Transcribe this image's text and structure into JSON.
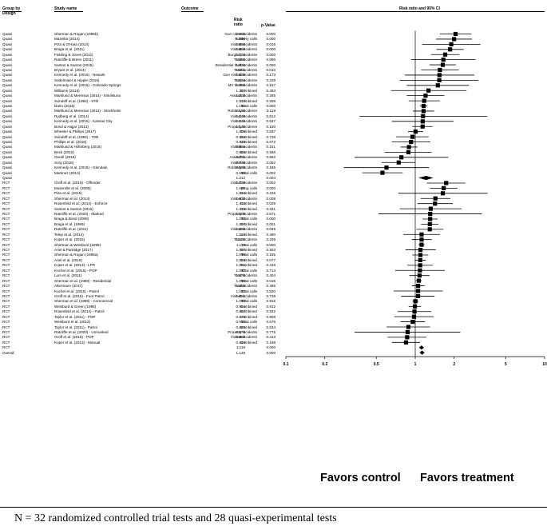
{
  "headers": {
    "group": "Group by",
    "design": "Design",
    "study": "Study name",
    "outcome": "Outcome",
    "risk_ratio": "Risk ratio",
    "pvalue": "p-Value",
    "plot_title": "Risk ratio and 95% CI"
  },
  "favors": {
    "left": "Favors control",
    "right": "Favors treatment"
  },
  "footnote": "N = 32 randomized controlled trial tests and 28 quasi-experimental tests",
  "colors": {
    "marks": "#000000",
    "background": "#ffffff"
  },
  "chart_data": {
    "type": "forest",
    "title": "Risk ratio and 95% CI",
    "xscale": "log",
    "xlim": [
      0.1,
      10
    ],
    "xticks": [
      0.1,
      0.2,
      0.5,
      1,
      2,
      5,
      10
    ],
    "xtick_labels": [
      "0.1",
      "0.2",
      "0.5",
      "1",
      "2",
      "5",
      "10"
    ],
    "reference_line": 1,
    "grid": false,
    "rows": [
      {
        "group": "Quasi",
        "study": "Sherman & Rogan (1995b)",
        "outcome": "Gun crime incidents",
        "rr": "2.050",
        "p": "0.000",
        "ci": [
          1.55,
          2.72
        ]
      },
      {
        "group": "Quasi",
        "study": "Mazeika (2014)",
        "outcome": "Robbery calls",
        "rr": "1.996",
        "p": "0.000",
        "ci": [
          1.45,
          2.75
        ]
      },
      {
        "group": "Quasi",
        "study": "Piza & O'Hara (2014)",
        "outcome": "Violent incidents",
        "rr": "1.898",
        "p": "0.016",
        "ci": [
          1.13,
          3.19
        ]
      },
      {
        "group": "Quasi",
        "study": "Braga et al. (2011)",
        "outcome": "Violent incidents",
        "rr": "1.859",
        "p": "0.000",
        "ci": [
          1.46,
          2.37
        ]
      },
      {
        "group": "Quasi",
        "study": "Fielding & Jones (2012)",
        "outcome": "Burglary incidents",
        "rr": "1.704",
        "p": "0.000",
        "ci": [
          1.32,
          2.2
        ]
      },
      {
        "group": "Quasi",
        "study": "Ratcliffe & Breen (2011)",
        "outcome": "Total incidents",
        "rr": "1.650",
        "p": "0.086",
        "ci": [
          0.93,
          2.93
        ]
      },
      {
        "group": "Quasi",
        "study": "Santos & Santos (2015)",
        "outcome": "Residential theft incidents",
        "rr": "1.632",
        "p": "0.000",
        "ci": [
          1.29,
          2.06
        ]
      },
      {
        "group": "Quasi",
        "study": "Bryant et al. (2014)",
        "outcome": "Total incidents",
        "rr": "1.551",
        "p": "0.010",
        "ci": [
          1.11,
          2.17
        ]
      },
      {
        "group": "Quasi",
        "study": "Kennedy et al. (2015) - Newark",
        "outcome": "Gun violent incidents",
        "rr": "1.539",
        "p": "0.173",
        "ci": [
          0.83,
          2.86
        ]
      },
      {
        "group": "Quasi",
        "study": "Sedelmaier & Hipple (2016)",
        "outcome": "Total incidents",
        "rr": "1.534",
        "p": "0.229",
        "ci": [
          0.76,
          3.08
        ]
      },
      {
        "group": "Quasi",
        "study": "Kennedy et al. (2015) - Colorado Springs",
        "outcome": "MV theft incidents",
        "rr": "1.496",
        "p": "0.157",
        "ci": [
          0.86,
          2.6
        ]
      },
      {
        "group": "Quasi",
        "study": "Williams (2015)",
        "outcome": "Combined",
        "rr": "1.267",
        "p": "0.493",
        "ci": [
          0.65,
          2.49
        ]
      },
      {
        "group": "Quasi",
        "study": "Marklund & Merenius (2014) - Eskilstuna",
        "outcome": "Assault incidents",
        "rr": "1.202",
        "p": "0.285",
        "ci": [
          0.86,
          1.68
        ]
      },
      {
        "group": "Quasi",
        "study": "Svindoff et al. (1992) - 67th",
        "outcome": "Combined",
        "rr": "1.172",
        "p": "0.258",
        "ci": [
          0.89,
          1.55
        ]
      },
      {
        "group": "Quasi",
        "study": "Dario (2016)",
        "outcome": "Total calls",
        "rr": "1.161",
        "p": "0.000",
        "ci": [
          1.09,
          1.24
        ]
      },
      {
        "group": "Quasi",
        "study": "Marklund & Merenius (2014) - Stockholm",
        "outcome": "Robbery incidents",
        "rr": "1.160",
        "p": "0.119",
        "ci": [
          0.96,
          1.4
        ]
      },
      {
        "group": "Quasi",
        "study": "Rydberg et al. (2014)",
        "outcome": "Violent incidents",
        "rr": "1.149",
        "p": "0.812",
        "ci": [
          0.37,
          3.6
        ]
      },
      {
        "group": "Quasi",
        "study": "Kennedy et al. (2015) - Kansas City",
        "outcome": "Violent incidents",
        "rr": "1.142",
        "p": "0.637",
        "ci": [
          0.66,
          1.98
        ]
      },
      {
        "group": "Quasi",
        "study": "Bond & Hajjar (2013)",
        "outcome": "Property incidents",
        "rr": "1.140",
        "p": "0.150",
        "ci": [
          0.95,
          1.36
        ]
      },
      {
        "group": "Quasi",
        "study": "Wheeler & Phillips (2017)",
        "outcome": "Combined",
        "rr": "1.005",
        "p": "0.937",
        "ci": [
          0.88,
          1.15
        ]
      },
      {
        "group": "Quasi",
        "study": "Svindoff et al. (1992) - 70th",
        "outcome": "Combined",
        "rr": "0.952",
        "p": "0.738",
        "ci": [
          0.71,
          1.27
        ]
      },
      {
        "group": "Quasi",
        "study": "Phillips et al. (2016)",
        "outcome": "Combined",
        "rr": "0.928",
        "p": "0.672",
        "ci": [
          0.66,
          1.31
        ]
      },
      {
        "group": "Quasi",
        "study": "Marklund & Holmberg (2015)",
        "outcome": "Violent incidents",
        "rr": "0.894",
        "p": "0.151",
        "ci": [
          0.77,
          1.04
        ]
      },
      {
        "group": "Quasi",
        "study": "Beck (2010)",
        "outcome": "Combined",
        "rr": "0.885",
        "p": "0.566",
        "ci": [
          0.58,
          1.34
        ]
      },
      {
        "group": "Quasi",
        "study": "Gerell (2016)",
        "outcome": "Assault incidents",
        "rr": "0.781",
        "p": "0.562",
        "ci": [
          0.34,
          1.8
        ]
      },
      {
        "group": "Quasi",
        "study": "Sorg (2015)",
        "outcome": "Violent incidents",
        "rr": "0.745",
        "p": "0.052",
        "ci": [
          0.55,
          1.0
        ]
      },
      {
        "group": "Quasi",
        "study": "Kennedy et al. (2015) - Glendale",
        "outcome": "Robbery incidents",
        "rr": "0.599",
        "p": "0.185",
        "ci": [
          0.28,
          1.28
        ]
      },
      {
        "group": "Quasi",
        "study": "Martinez (2013)",
        "outcome": "Total calls",
        "rr": "0.558",
        "p": "0.002",
        "ci": [
          0.39,
          0.8
        ]
      },
      {
        "group": "Quasi",
        "study": "",
        "outcome": "",
        "rr": "1.212",
        "p": "0.004",
        "ci": [
          1.06,
          1.38
        ],
        "summary": true
      },
      {
        "group": "RCT",
        "study": "Groff et al. (2015) - Offender",
        "outcome": "Violent incidents",
        "rr": "1.733",
        "p": "0.002",
        "ci": [
          1.23,
          2.44
        ]
      },
      {
        "group": "RCT",
        "study": "Mazerolle et al. (2000)",
        "outcome": "Drug calls",
        "rr": "1.660",
        "p": "0.000",
        "ci": [
          1.3,
          2.12
        ]
      },
      {
        "group": "RCT",
        "study": "Piza et al. (2015)",
        "outcome": "Combined",
        "rr": "1.634",
        "p": "0.226",
        "ci": [
          0.74,
          3.62
        ]
      },
      {
        "group": "RCT",
        "study": "Sherman et al. (2014)",
        "outcome": "Violent incidents",
        "rr": "1.432",
        "p": "0.008",
        "ci": [
          1.1,
          1.87
        ]
      },
      {
        "group": "RCT",
        "study": "Rosenfeld et al. (2014) - Enforce",
        "outcome": "Combined",
        "rr": "1.422",
        "p": "0.029",
        "ci": [
          1.04,
          1.95
        ]
      },
      {
        "group": "RCT",
        "study": "Santos & Santos (2016)",
        "outcome": "Combined",
        "rr": "1.318",
        "p": "0.321",
        "ci": [
          0.76,
          2.28
        ]
      },
      {
        "group": "RCT",
        "study": "Ratcliffe et al. (2020) - Marked",
        "outcome": "Property incidents",
        "rr": "1.305",
        "p": "0.571",
        "ci": [
          0.52,
          3.27
        ]
      },
      {
        "group": "RCT",
        "study": "Braga & Bond (2008)",
        "outcome": "Total calls",
        "rr": "1.303",
        "p": "0.000",
        "ci": [
          1.14,
          1.49
        ]
      },
      {
        "group": "RCT",
        "study": "Braga et al. (1999)",
        "outcome": "Combined",
        "rr": "1.297",
        "p": "0.001",
        "ci": [
          1.11,
          1.51
        ]
      },
      {
        "group": "RCT",
        "study": "Ratcliffe et al. (2011)",
        "outcome": "Violent incidents",
        "rr": "1.296",
        "p": "0.035",
        "ci": [
          1.02,
          1.65
        ]
      },
      {
        "group": "RCT",
        "study": "Telep et al. (2014)",
        "outcome": "Combined",
        "rr": "1.120",
        "p": "0.490",
        "ci": [
          0.81,
          1.55
        ]
      },
      {
        "group": "RCT",
        "study": "Koper et al. (2015)",
        "outcome": "Total incidents",
        "rr": "1.120",
        "p": "0.209",
        "ci": [
          0.94,
          1.34
        ]
      },
      {
        "group": "RCT",
        "study": "Sherman & Weisburd (1995)",
        "outcome": "Total calls",
        "rr": "1.119",
        "p": "0.000",
        "ci": [
          1.06,
          1.18
        ]
      },
      {
        "group": "RCT",
        "study": "Ariel & Partridge (2017)",
        "outcome": "Combined",
        "rr": "1.097",
        "p": "0.503",
        "ci": [
          0.84,
          1.44
        ]
      },
      {
        "group": "RCT",
        "study": "Sherman & Rogan (1995a)",
        "outcome": "Total calls",
        "rr": "1.096",
        "p": "0.195",
        "ci": [
          0.95,
          1.26
        ]
      },
      {
        "group": "RCT",
        "study": "Ariel et al. (2016)",
        "outcome": "Combined",
        "rr": "1.093",
        "p": "0.077",
        "ci": [
          0.99,
          1.21
        ]
      },
      {
        "group": "RCT",
        "study": "Koper et al. (2013) - LPR",
        "outcome": "Combined",
        "rr": "1.091",
        "p": "0.449",
        "ci": [
          0.87,
          1.37
        ]
      },
      {
        "group": "RCT",
        "study": "Kochel et al. (2015) - POP",
        "outcome": "Total calls",
        "rr": "1.087",
        "p": "0.713",
        "ci": [
          0.7,
          1.69
        ]
      },
      {
        "group": "RCT",
        "study": "Lum et al. (2011)",
        "outcome": "Total incidents",
        "rr": "1.079",
        "p": "0.404",
        "ci": [
          0.9,
          1.29
        ]
      },
      {
        "group": "RCT",
        "study": "Sherman et al. (1989) - Residential",
        "outcome": "Total calls",
        "rr": "1.065",
        "p": "0.015",
        "ci": [
          1.01,
          1.12
        ]
      },
      {
        "group": "RCT",
        "study": "Altermann (2017)",
        "outcome": "Total incidents",
        "rr": "1.052",
        "p": "0.395",
        "ci": [
          0.94,
          1.18
        ]
      },
      {
        "group": "RCT",
        "study": "Kochel et al. (2015) - Patrol",
        "outcome": "Total calls",
        "rr": "1.052",
        "p": "0.820",
        "ci": [
          0.68,
          1.63
        ]
      },
      {
        "group": "RCT",
        "study": "Groff et al. (2015) - Foot Patrol",
        "outcome": "Violent incidents",
        "rr": "1.051",
        "p": "0.739",
        "ci": [
          0.78,
          1.41
        ]
      },
      {
        "group": "RCT",
        "study": "Sherman et al. (1989) - Commercial",
        "outcome": "Total calls",
        "rr": "1.003",
        "p": "0.915",
        "ci": [
          0.95,
          1.06
        ]
      },
      {
        "group": "RCT",
        "study": "Weisburd & Green (1995)",
        "outcome": "Combined",
        "rr": "0.994",
        "p": "0.912",
        "ci": [
          0.89,
          1.11
        ]
      },
      {
        "group": "RCT",
        "study": "Rosenfeld et al. (2014) - Patrol",
        "outcome": "Combined",
        "rr": "0.987",
        "p": "0.932",
        "ci": [
          0.73,
          1.33
        ]
      },
      {
        "group": "RCT",
        "study": "Taylor et al. (2011) - POP",
        "outcome": "Combined",
        "rr": "0.979",
        "p": "0.908",
        "ci": [
          0.69,
          1.39
        ]
      },
      {
        "group": "RCT",
        "study": "Weisburd et al. (2012)",
        "outcome": "Total calls",
        "rr": "0.955",
        "p": "0.676",
        "ci": [
          0.77,
          1.19
        ]
      },
      {
        "group": "RCT",
        "study": "Taylor et al. (2011) - Patrol",
        "outcome": "Combined",
        "rr": "0.885",
        "p": "0.534",
        "ci": [
          0.6,
          1.3
        ]
      },
      {
        "group": "RCT",
        "study": "Ratcliffe et al. (2020) - Unmarked",
        "outcome": "Property incidents",
        "rr": "0.873",
        "p": "0.775",
        "ci": [
          0.34,
          2.23
        ]
      },
      {
        "group": "RCT",
        "study": "Groff et al. (2015) - POP",
        "outcome": "Violent incidents",
        "rr": "0.866",
        "p": "0.413",
        "ci": [
          0.61,
          1.22
        ]
      },
      {
        "group": "RCT",
        "study": "Koper et al. (2013) - Manual",
        "outcome": "Combined",
        "rr": "0.849",
        "p": "0.198",
        "ci": [
          0.66,
          1.09
        ]
      },
      {
        "group": "RCT",
        "study": "",
        "outcome": "",
        "rr": "1.118",
        "p": "0.000",
        "ci": [
          1.07,
          1.17
        ],
        "summary": true
      },
      {
        "group": "Overall",
        "study": "",
        "outcome": "",
        "rr": "1.129",
        "p": "0.000",
        "ci": [
          1.08,
          1.18
        ],
        "summary": true
      }
    ]
  }
}
